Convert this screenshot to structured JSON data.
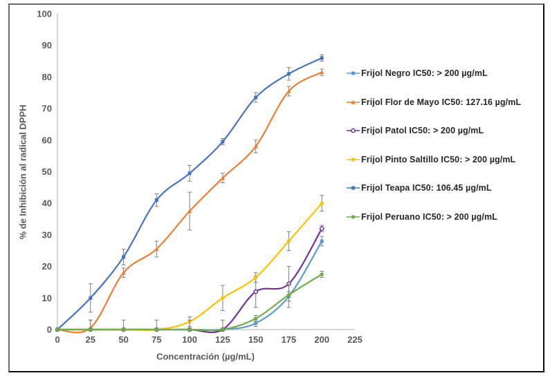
{
  "chart_data": {
    "type": "line",
    "title": "",
    "xlabel": "Concentración (µg/mL)",
    "ylabel": "% de Inhibición al radical DPPH",
    "xlim": [
      0,
      225
    ],
    "ylim": [
      0,
      100
    ],
    "x_ticks": [
      0,
      25,
      50,
      75,
      100,
      125,
      150,
      175,
      200,
      225
    ],
    "y_ticks": [
      0,
      10,
      20,
      30,
      40,
      50,
      60,
      70,
      80,
      90,
      100
    ],
    "grid": false,
    "legend_position": "right",
    "x": [
      0,
      25,
      50,
      75,
      100,
      125,
      150,
      175,
      200
    ],
    "series": [
      {
        "name": "Frijol Negro",
        "label": "Frijol Negro IC50: > 200 µg/mL",
        "color": "#5B9BD5",
        "marker": "square",
        "values": [
          0,
          0,
          0,
          0,
          0,
          0,
          2,
          10.5,
          28
        ],
        "errors": [
          0,
          0,
          0,
          0,
          0,
          0,
          1,
          1.5,
          1.5
        ]
      },
      {
        "name": "Frijol Flor de Mayo",
        "label": "Frijol Flor de Mayo IC50: 127.16 µg/mL",
        "color": "#ED7D31",
        "marker": "triangle",
        "values": [
          0,
          0.5,
          18,
          25.5,
          37.5,
          48,
          58,
          75.5,
          81.5
        ],
        "errors": [
          0,
          2.5,
          1.5,
          2.5,
          6,
          1.5,
          2,
          1.5,
          1
        ]
      },
      {
        "name": "Frijol Patol",
        "label": "Frijol Patol IC50: > 200 µg/mL",
        "color": "#7030A0",
        "marker": "circle-open",
        "values": [
          0,
          0,
          0,
          0,
          0,
          0,
          12,
          14.5,
          32
        ],
        "errors": [
          0,
          0,
          0,
          0,
          0,
          0,
          5,
          5.5,
          1
        ]
      },
      {
        "name": "Frijol Pinto Saltillo",
        "label": "Frijol Pinto Saltillo IC50: > 200 µg/mL",
        "color": "#FFC000",
        "marker": "circle",
        "values": [
          0,
          0,
          0,
          0,
          2.5,
          10,
          16.5,
          28,
          40
        ],
        "errors": [
          0,
          0,
          0,
          0,
          1.5,
          4,
          1.5,
          3,
          2.5
        ]
      },
      {
        "name": "Frijol Teapa",
        "label": "Frijol Teapa IC50:  106.45 µg/mL",
        "color": "#4472C4",
        "marker": "square",
        "values": [
          0,
          10,
          23,
          41,
          49.5,
          59.5,
          73.5,
          81,
          86
        ],
        "errors": [
          0,
          4.5,
          2.5,
          2,
          2.5,
          1,
          1.5,
          2,
          1
        ]
      },
      {
        "name": "Frijol Peruano",
        "label": "Frijol Peruano IC50: > 200 µg/mL",
        "color": "#70AD47",
        "marker": "circle",
        "values": [
          0,
          0,
          0,
          0,
          0,
          0,
          3.5,
          11,
          17.5
        ],
        "errors": [
          0,
          3,
          3,
          3,
          3,
          3,
          1,
          4,
          1
        ]
      }
    ],
    "error_bar_color": "#7F7F7F",
    "axis_color": "#BFBFBF",
    "tick_label_color": "#595959"
  }
}
